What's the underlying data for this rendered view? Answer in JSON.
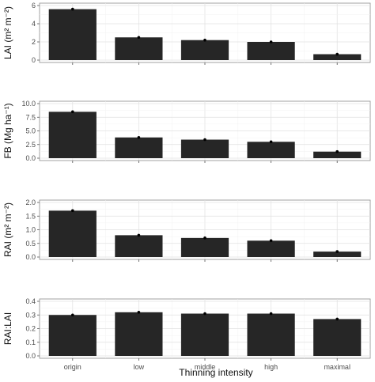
{
  "chart_data": {
    "type": "bar",
    "categories": [
      "origin",
      "low",
      "middle",
      "high",
      "maximal"
    ],
    "xlabel": "Thinning intensity",
    "colors": {
      "bar": "#262626",
      "grid": "#e0e0e0",
      "panel_border": "#8a8a8a"
    },
    "panels": [
      {
        "ylabel": "LAI (m² m⁻²)",
        "ylim": [
          0,
          6
        ],
        "yticks": [
          0,
          2,
          4,
          6
        ],
        "ytick_labels": [
          "0",
          "2",
          "4",
          "6"
        ],
        "values": [
          5.6,
          2.5,
          2.2,
          2.0,
          0.65
        ],
        "errors": [
          0.1,
          0.06,
          0.05,
          0.05,
          0.04
        ]
      },
      {
        "ylabel": "FB (Mg ha⁻¹)",
        "ylim": [
          0,
          10
        ],
        "yticks": [
          0,
          2.5,
          5,
          7.5,
          10
        ],
        "ytick_labels": [
          "0.0",
          "2.5",
          "5.0",
          "7.5",
          "10.0"
        ],
        "values": [
          8.5,
          3.8,
          3.4,
          3.0,
          1.2
        ],
        "errors": [
          0.15,
          0.08,
          0.07,
          0.06,
          0.05
        ]
      },
      {
        "ylabel": "RAI (m² m⁻²)",
        "ylim": [
          0,
          2
        ],
        "yticks": [
          0,
          0.5,
          1.0,
          1.5,
          2.0
        ],
        "ytick_labels": [
          "0.0",
          "0.5",
          "1.0",
          "1.5",
          "2.0"
        ],
        "values": [
          1.7,
          0.8,
          0.7,
          0.6,
          0.2
        ],
        "errors": [
          0.03,
          0.02,
          0.02,
          0.02,
          0.01
        ]
      },
      {
        "ylabel": "RAI:LAI",
        "ylim": [
          0,
          0.4
        ],
        "yticks": [
          0,
          0.1,
          0.2,
          0.3,
          0.4
        ],
        "ytick_labels": [
          "0.0",
          "0.1",
          "0.2",
          "0.3",
          "0.4"
        ],
        "values": [
          0.3,
          0.32,
          0.31,
          0.31,
          0.27
        ],
        "errors": [
          0.005,
          0.005,
          0.005,
          0.005,
          0.005
        ]
      }
    ]
  }
}
